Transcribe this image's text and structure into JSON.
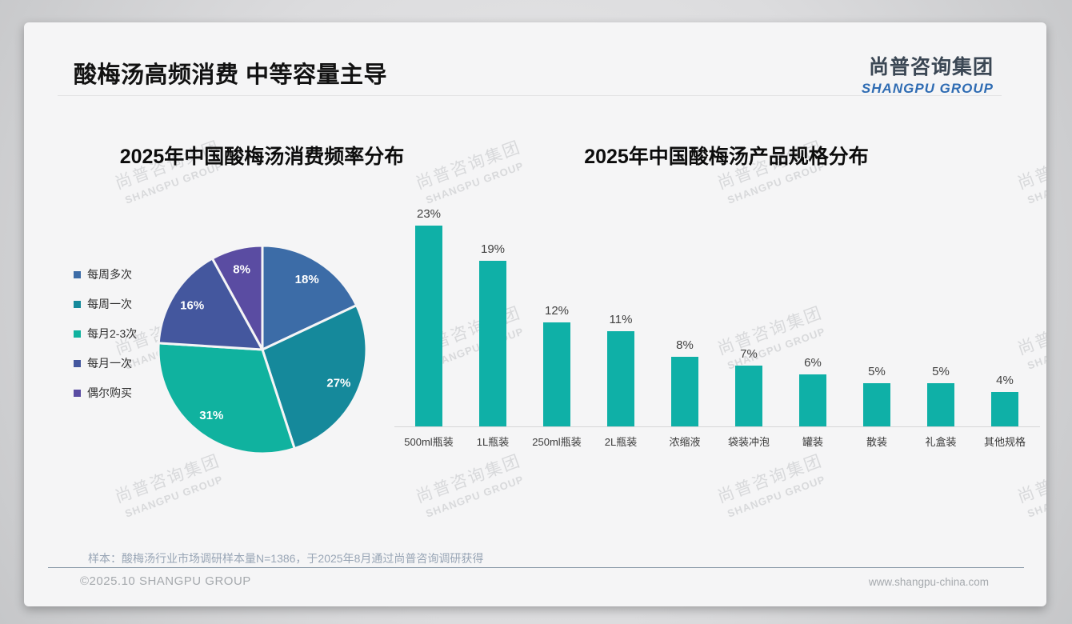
{
  "page": {
    "title": "酸梅汤高频消费 中等容量主导"
  },
  "logo": {
    "cn": "尚普咨询集团",
    "en": "SHANGPU GROUP"
  },
  "watermark": {
    "cn": "尚普咨询集团",
    "en": "SHANGPU GROUP"
  },
  "footer": {
    "note": "样本：酸梅汤行业市场调研样本量N=1386，于2025年8月通过尚普咨询调研获得",
    "copyright": "©2025.10 SHANGPU GROUP",
    "website": "www.shangpu-china.com"
  },
  "chart_data": [
    {
      "type": "pie",
      "title": "2025年中国酸梅汤消费频率分布",
      "labels": [
        "每周多次",
        "每周一次",
        "每月2-3次",
        "每月一次",
        "偶尔购买"
      ],
      "values": [
        18,
        27,
        31,
        16,
        8
      ],
      "value_labels": [
        "18%",
        "27%",
        "31%",
        "16%",
        "8%"
      ],
      "colors": [
        "#3c6ca7",
        "#15899b",
        "#10b29f",
        "#44579e",
        "#5a4ca2"
      ],
      "legend_position": "left",
      "start_angle": "12-oclock",
      "direction": "clockwise",
      "label_color": "#ffffff"
    },
    {
      "type": "bar",
      "title": "2025年中国酸梅汤产品规格分布",
      "categories": [
        "500ml瓶装",
        "1L瓶装",
        "250ml瓶装",
        "2L瓶装",
        "浓缩液",
        "袋装冲泡",
        "罐装",
        "散装",
        "礼盒装",
        "其他规格"
      ],
      "values": [
        23,
        19,
        12,
        11,
        8,
        7,
        6,
        5,
        5,
        4
      ],
      "value_labels": [
        "23%",
        "19%",
        "12%",
        "11%",
        "8%",
        "7%",
        "6%",
        "5%",
        "5%",
        "4%"
      ],
      "bar_color": "#0fb0a7",
      "ylim": [
        0,
        25
      ],
      "grid": false,
      "xlabel": "",
      "ylabel": ""
    }
  ]
}
